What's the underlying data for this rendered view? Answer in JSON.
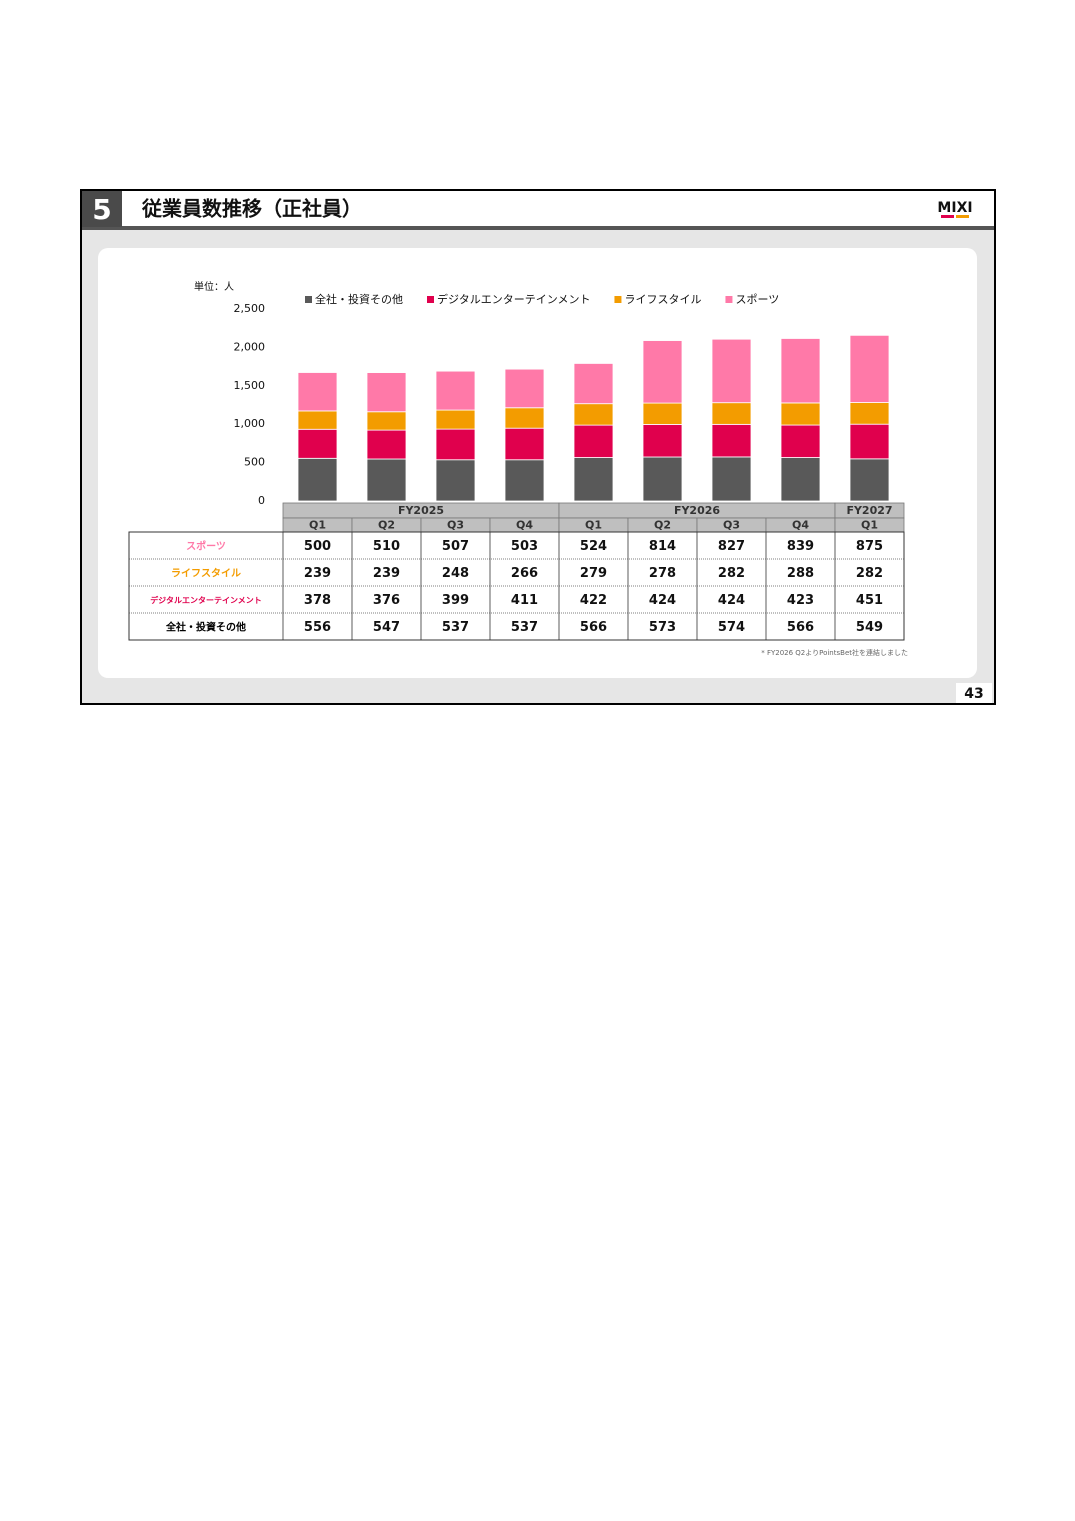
{
  "section": "5",
  "title": "従業員数推移（正社員）",
  "logo": "MIXI",
  "page_number": "43",
  "chart_data": {
    "type": "bar",
    "stacked": true,
    "unit": "単位：人",
    "category_groups": [
      {
        "label": "FY2025",
        "categories": [
          "Q1",
          "Q2",
          "Q3",
          "Q4"
        ]
      },
      {
        "label": "FY2026",
        "categories": [
          "Q1",
          "Q2",
          "Q3",
          "Q4"
        ]
      },
      {
        "label": "FY2027",
        "categories": [
          "Q1"
        ]
      }
    ],
    "series": [
      {
        "name": "全社・投資その他",
        "color": "#595959",
        "values": [
          556,
          547,
          537,
          537,
          566,
          573,
          574,
          566,
          549
        ]
      },
      {
        "name": "デジタルエンターテインメント",
        "color": "#e0004d",
        "values": [
          378,
          376,
          399,
          411,
          422,
          424,
          424,
          423,
          451
        ]
      },
      {
        "name": "ライフスタイル",
        "color": "#f39c00",
        "values": [
          239,
          239,
          248,
          266,
          279,
          278,
          282,
          288,
          282
        ]
      },
      {
        "name": "スポーツ",
        "color": "#ff79a8",
        "values": [
          500,
          510,
          507,
          503,
          524,
          814,
          827,
          839,
          875
        ]
      }
    ],
    "ylim": [
      0,
      2500
    ],
    "yticks": [
      0,
      500,
      {
        "value": 1000,
        "label": "1,000"
      },
      {
        "value": 1500,
        "label": "1,500"
      },
      {
        "value": 2000,
        "label": "2,000"
      },
      {
        "value": 2500,
        "label": "2,500"
      }
    ],
    "footnote": "* FY2026 Q2よりPointsBet社を連結しました"
  }
}
